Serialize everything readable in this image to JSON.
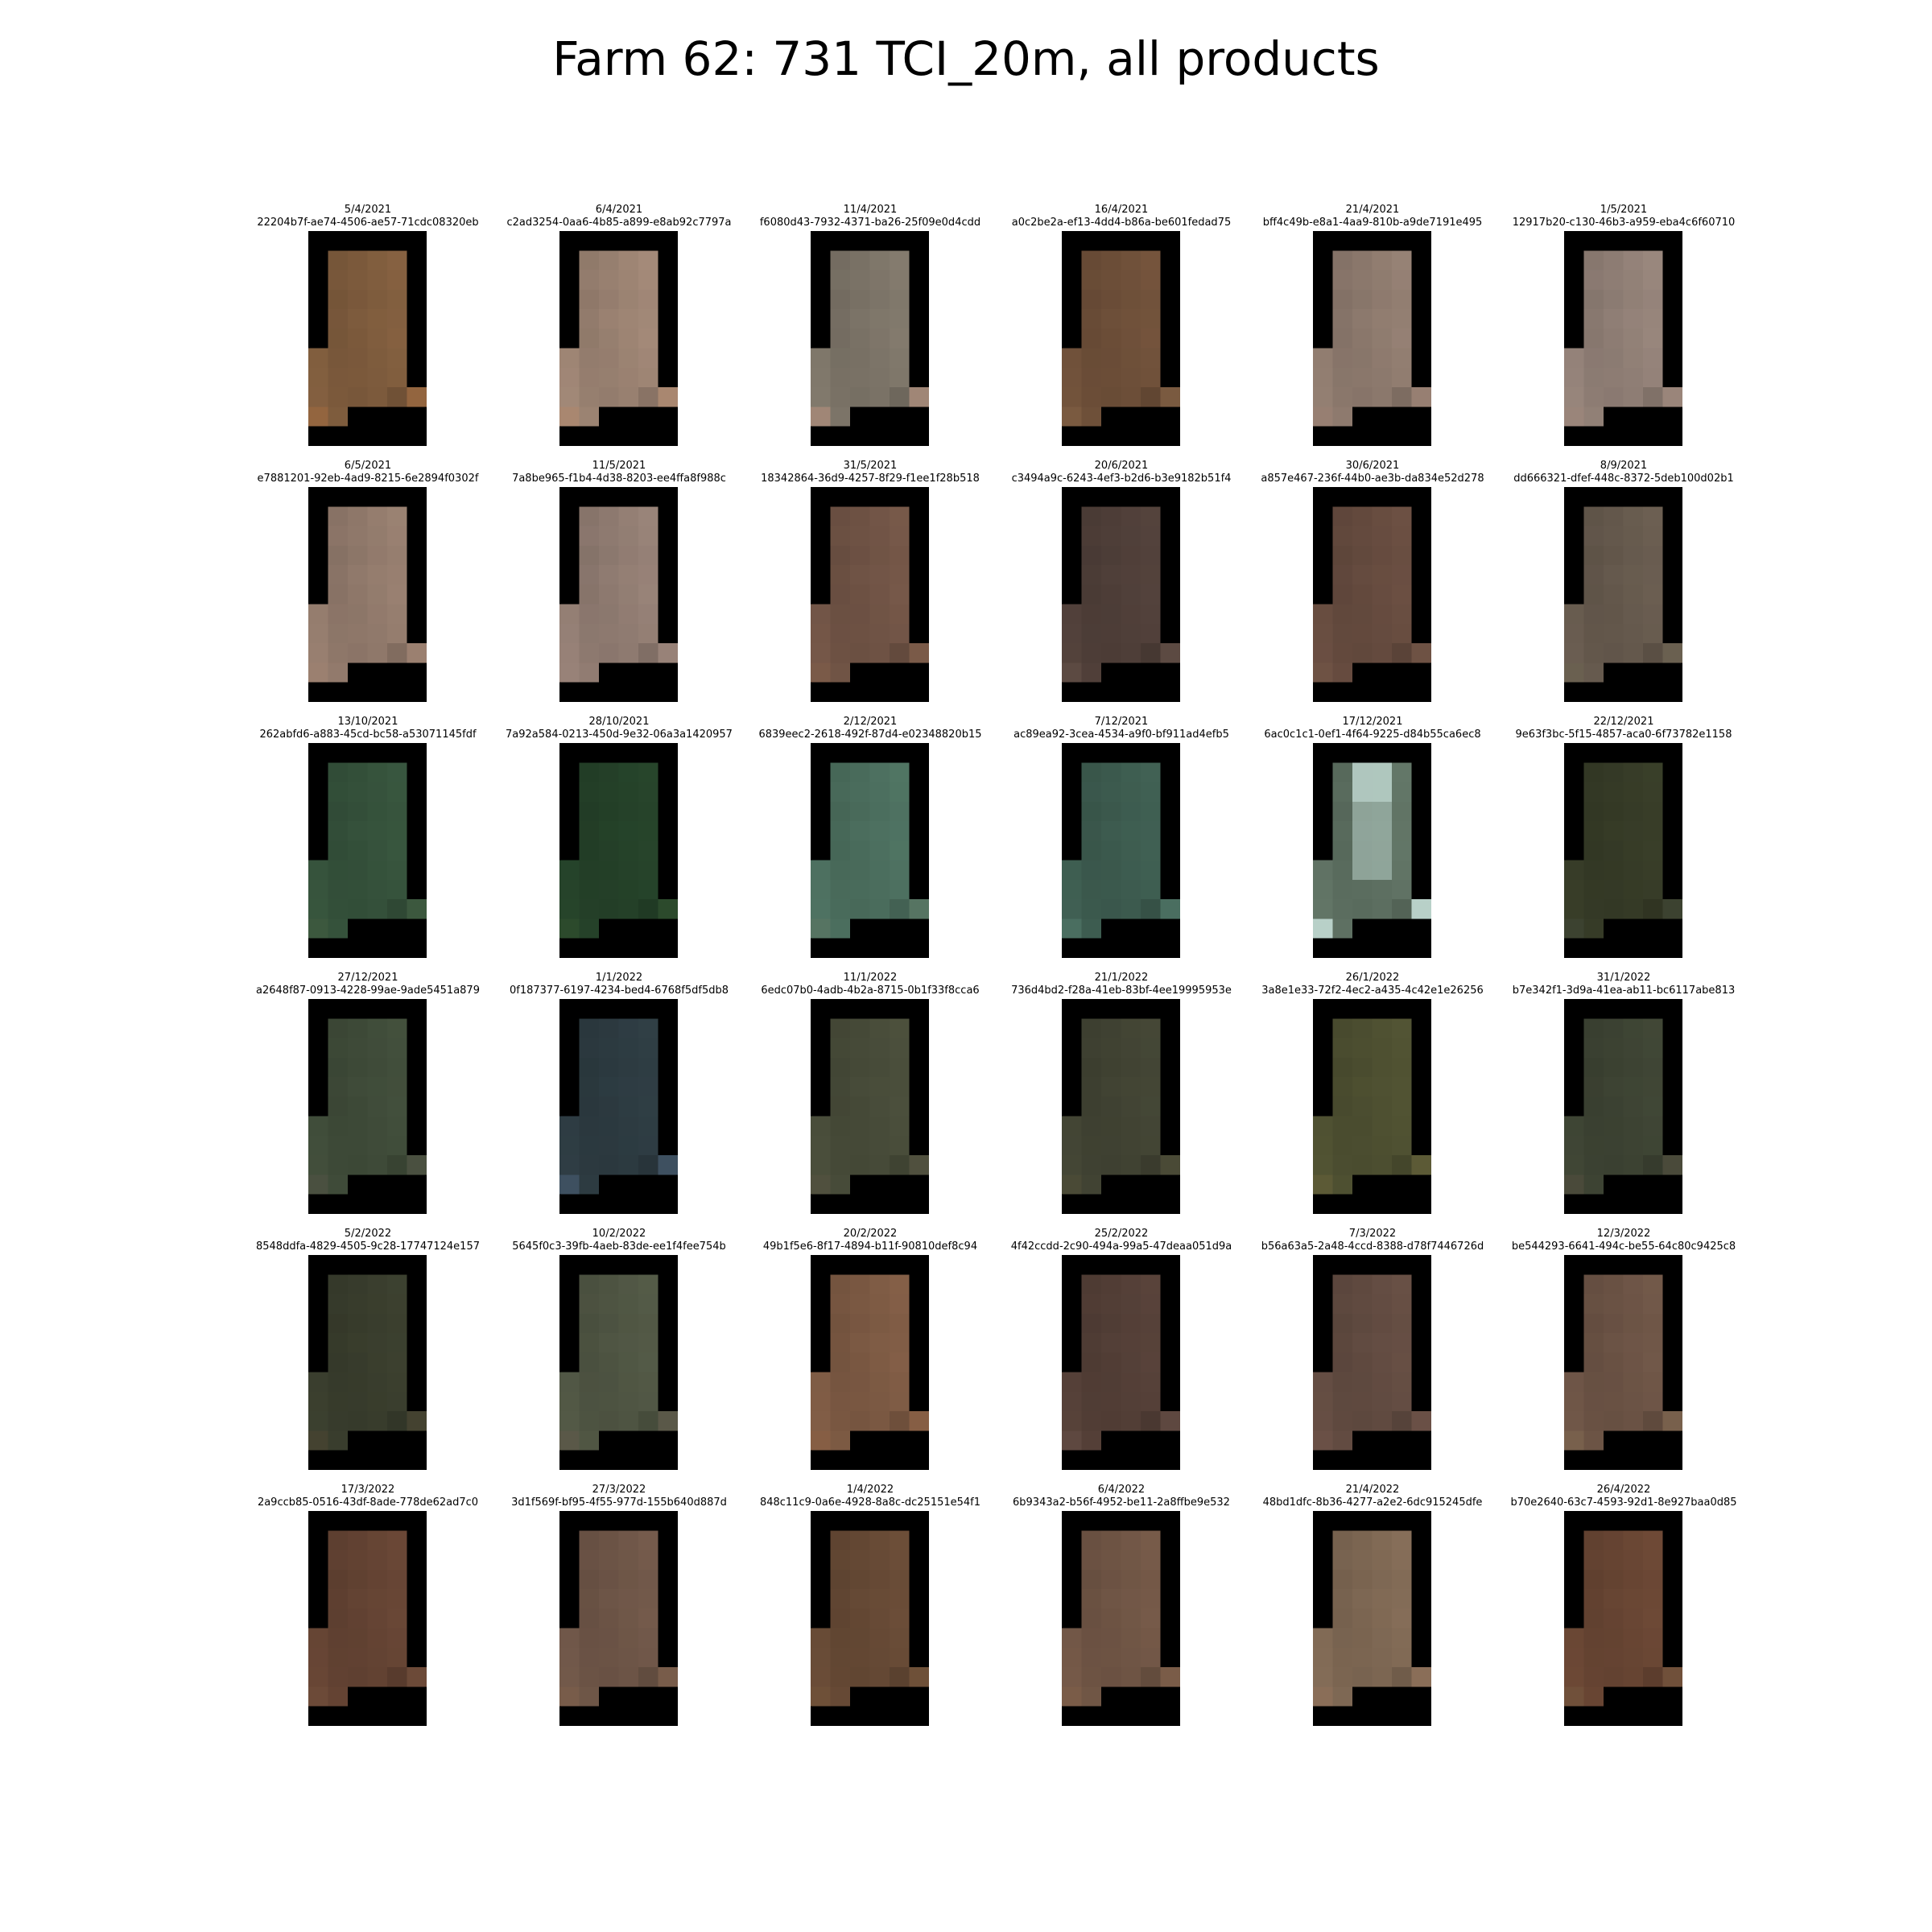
{
  "title": "Farm 62: 731 TCI_20m, all products",
  "panels": [
    {
      "date": "5/4/2021",
      "id": "22204b7f-ae74-4506-ae57-71cdc08320eb",
      "color": "#7c5a3c",
      "accent": "#93653f"
    },
    {
      "date": "6/4/2021",
      "id": "c2ad3254-0aa6-4b85-a899-e8ab92c7797a",
      "color": "#988070",
      "accent": "#a98770"
    },
    {
      "date": "11/4/2021",
      "id": "f6080d43-7932-4371-ba26-25f09e0d4cdd",
      "color": "#7a7266",
      "accent": "#a08676"
    },
    {
      "date": "16/4/2021",
      "id": "a0c2be2a-ef13-4dd4-b86a-be601fedad75",
      "color": "#6c4e38",
      "accent": "#7a5a40"
    },
    {
      "date": "21/4/2021",
      "id": "bff4c49b-e8a1-4aa9-810b-a9de7191e495",
      "color": "#8b786c",
      "accent": "#977f72"
    },
    {
      "date": "1/5/2021",
      "id": "12917b20-c130-46b3-a959-eba4c6f60710",
      "color": "#8e7d74",
      "accent": "#9a857a"
    },
    {
      "date": "6/5/2021",
      "id": "e7881201-92eb-4ad9-8215-6e2894f0302f",
      "color": "#8f786a",
      "accent": "#9b8070"
    },
    {
      "date": "11/5/2021",
      "id": "7a8be965-f1b4-4d38-8203-ee4ffa8f988c",
      "color": "#8e7a70",
      "accent": "#988278"
    },
    {
      "date": "31/5/2021",
      "id": "18342864-36d9-4257-8f29-f1ee1f28b518",
      "color": "#6e5244",
      "accent": "#7a5a48"
    },
    {
      "date": "20/6/2021",
      "id": "c3494a9c-6243-4ef3-b2d6-b3e9182b51f4",
      "color": "#4e3e38",
      "accent": "#5c4a42"
    },
    {
      "date": "30/6/2021",
      "id": "a857e467-236f-44b0-ae3b-da834e52d278",
      "color": "#644a3e",
      "accent": "#6e5244"
    },
    {
      "date": "8/9/2021",
      "id": "dd666321-dfef-448c-8372-5deb100d02b1",
      "color": "#64584c",
      "accent": "#6a6050"
    },
    {
      "date": "13/10/2021",
      "id": "262abfd6-a883-45cd-bc58-a53071145fdf",
      "color": "#34503a",
      "accent": "#3c583e"
    },
    {
      "date": "28/10/2021",
      "id": "7a92a584-0213-450d-9e32-06a3a1420957",
      "color": "#244028",
      "accent": "#2c4a2c"
    },
    {
      "date": "2/12/2021",
      "id": "6839eec2-2618-492f-87d4-e02348820b15",
      "color": "#4a6c5c",
      "accent": "#567462"
    },
    {
      "date": "7/12/2021",
      "id": "ac89ea92-3cea-4534-a9f0-bf911ad4efb5",
      "color": "#3c5a4e",
      "accent": "#4a6e60"
    },
    {
      "date": "17/12/2021",
      "id": "6ac0c1c1-0ef1-4f64-9225-d84b55ca6ec8",
      "color": "#5c6e60",
      "accent": "#b8d0c8"
    },
    {
      "date": "22/12/2021",
      "id": "9e63f3bc-5f15-4857-aca0-6f73782e1158",
      "color": "#353a26",
      "accent": "#3c4230"
    },
    {
      "date": "27/12/2021",
      "id": "a2648f87-0913-4228-99ae-9ade5451a879",
      "color": "#3e4a38",
      "accent": "#4a5040"
    },
    {
      "date": "1/1/2022",
      "id": "0f187377-6197-4234-bed4-6768f5df5db8",
      "color": "#2c3a40",
      "accent": "#3e5060"
    },
    {
      "date": "11/1/2022",
      "id": "6edc07b0-4adb-4b2a-8715-0b1f33f8cca6",
      "color": "#464a38",
      "accent": "#50503e"
    },
    {
      "date": "21/1/2022",
      "id": "736d4bd2-f28a-41eb-83bf-4ee19995953e",
      "color": "#404232",
      "accent": "#4a4a36"
    },
    {
      "date": "26/1/2022",
      "id": "3a8e1e33-72f2-4ec2-a435-4c42e1e26256",
      "color": "#4c4e30",
      "accent": "#5c5a36"
    },
    {
      "date": "31/1/2022",
      "id": "b7e342f1-3d9a-41ea-ab11-bc6117abe813",
      "color": "#3c4232",
      "accent": "#4a4a3a"
    },
    {
      "date": "5/2/2022",
      "id": "8548ddfa-4829-4505-9c28-17747124e157",
      "color": "#383c2c",
      "accent": "#444230"
    },
    {
      "date": "10/2/2022",
      "id": "5645f0c3-39fb-4aeb-83de-ee1f4fee754b",
      "color": "#4e5442",
      "accent": "#5a5848"
    },
    {
      "date": "20/2/2022",
      "id": "49b1f5e6-8f17-4894-b11f-90810def8c94",
      "color": "#7a5842",
      "accent": "#865e44"
    },
    {
      "date": "25/2/2022",
      "id": "4f42ccdd-2c90-494a-99a5-47deaa051d9a",
      "color": "#523e36",
      "accent": "#5e4840"
    },
    {
      "date": "7/3/2022",
      "id": "b56a63a5-2a48-4ccd-8388-d78f7446726d",
      "color": "#604a40",
      "accent": "#6a5046"
    },
    {
      "date": "12/3/2022",
      "id": "be544293-6641-494c-be55-64c80c9425c8",
      "color": "#6a5244",
      "accent": "#78604c"
    },
    {
      "date": "17/3/2022",
      "id": "2a9ccb85-0516-43df-8ade-778de62ad7c0",
      "color": "#624232",
      "accent": "#6c4a38"
    },
    {
      "date": "27/3/2022",
      "id": "3d1f569f-bf95-4f55-977d-155b640d887d",
      "color": "#6c5446",
      "accent": "#785c4a"
    },
    {
      "date": "1/4/2022",
      "id": "848c11c9-0a6e-4928-8a8c-dc25151e54f1",
      "color": "#644834",
      "accent": "#6e5038"
    },
    {
      "date": "6/4/2022",
      "id": "6b9343a2-b56f-4952-be11-2a8ffbe9e532",
      "color": "#6e5444",
      "accent": "#7a5c48"
    },
    {
      "date": "21/4/2022",
      "id": "48bd1dfc-8b36-4277-a2e2-6dc915245dfe",
      "color": "#7c6652",
      "accent": "#8a6e58"
    },
    {
      "date": "26/4/2022",
      "id": "b70e2640-63c7-4593-92d1-8e927baa0d85",
      "color": "#664432",
      "accent": "#70503a"
    }
  ]
}
